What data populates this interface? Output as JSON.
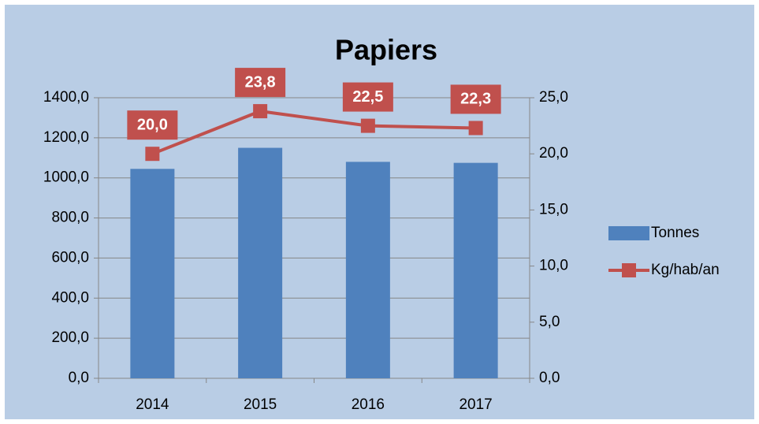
{
  "chart_data": {
    "type": "combo",
    "title": "Papiers",
    "categories": [
      "2014",
      "2015",
      "2016",
      "2017"
    ],
    "series": [
      {
        "name": "Tonnes",
        "type": "bar",
        "color": "#4f81bd",
        "values": [
          1045,
          1150,
          1080,
          1075
        ]
      },
      {
        "name": "Kg/hab/an",
        "type": "line",
        "axis": "y2",
        "color": "#c0504d",
        "values": [
          20.0,
          23.8,
          22.5,
          22.3
        ],
        "value_labels": [
          "20,0",
          "23,8",
          "22,5",
          "22,3"
        ]
      }
    ],
    "ylim": [
      0,
      1400
    ],
    "yticks": [
      {
        "value": 0,
        "label": "0,0"
      },
      {
        "value": 200,
        "label": "200,0"
      },
      {
        "value": 400,
        "label": "400,0"
      },
      {
        "value": 600,
        "label": "600,0"
      },
      {
        "value": 800,
        "label": "800,0"
      },
      {
        "value": 1000,
        "label": "1000,0"
      },
      {
        "value": 1200,
        "label": "1200,0"
      },
      {
        "value": 1400,
        "label": "1400,0"
      }
    ],
    "y2lim": [
      0,
      25
    ],
    "y2ticks": [
      {
        "value": 0,
        "label": "0,0"
      },
      {
        "value": 5,
        "label": "5,0"
      },
      {
        "value": 10,
        "label": "10,0"
      },
      {
        "value": 15,
        "label": "15,0"
      },
      {
        "value": 20,
        "label": "20,0"
      },
      {
        "value": 25,
        "label": "25,0"
      }
    ],
    "grid": true,
    "legend": "right"
  }
}
